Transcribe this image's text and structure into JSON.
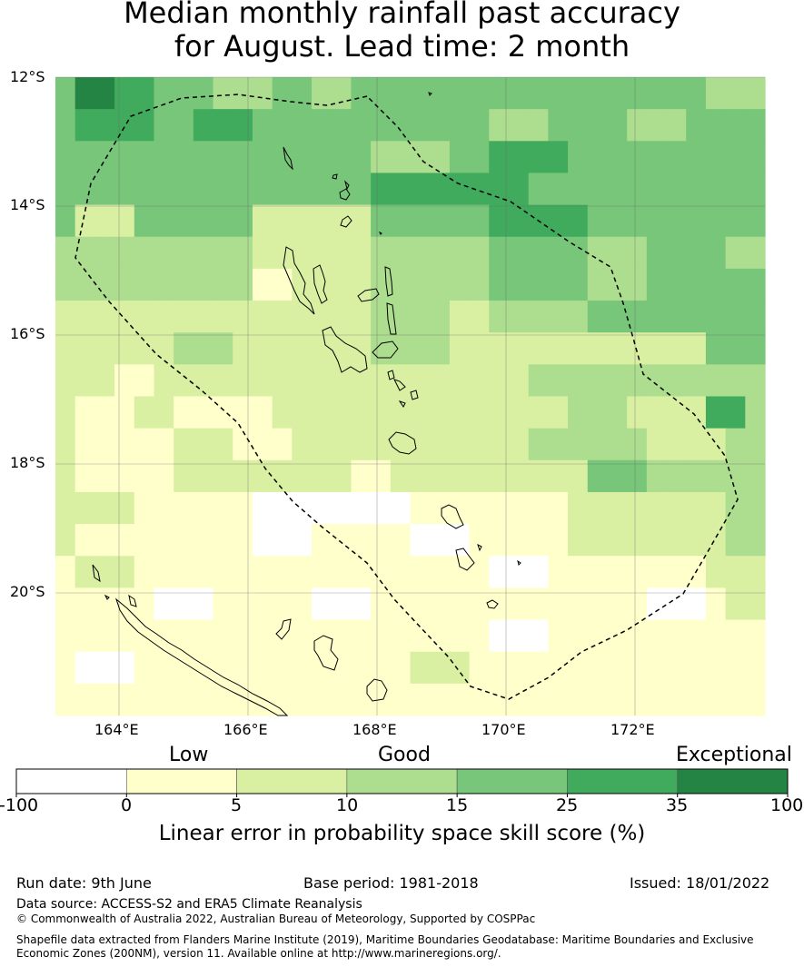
{
  "title_line1": "Median monthly rainfall past accuracy",
  "title_line2": "for August. Lead time: 2 month",
  "map": {
    "lat_labels": [
      "12°S",
      "14°S",
      "16°S",
      "18°S",
      "20°S"
    ],
    "lon_labels": [
      "164°E",
      "166°E",
      "168°E",
      "170°E",
      "172°E"
    ],
    "colors": [
      "#ffffff",
      "#ffffcc",
      "#d9f0a3",
      "#addd8e",
      "#78c679",
      "#41ab5d",
      "#238443"
    ],
    "grid_rows": [
      [
        4,
        6,
        6,
        5,
        5,
        4,
        4,
        4,
        3,
        3,
        3,
        4,
        4,
        3,
        3,
        4,
        4,
        4,
        4,
        4,
        4,
        4,
        4,
        4,
        4,
        4,
        4,
        4,
        4,
        4,
        4,
        4,
        4,
        3,
        3,
        3
      ],
      [
        4,
        5,
        5,
        5,
        5,
        4,
        4,
        5,
        5,
        5,
        4,
        4,
        4,
        4,
        4,
        4,
        4,
        4,
        4,
        4,
        4,
        4,
        3,
        3,
        3,
        4,
        4,
        4,
        4,
        3,
        3,
        3,
        4,
        4,
        4,
        4
      ],
      [
        4,
        4,
        4,
        4,
        4,
        4,
        4,
        4,
        4,
        4,
        4,
        4,
        4,
        4,
        4,
        4,
        3,
        3,
        3,
        3,
        4,
        4,
        5,
        5,
        5,
        5,
        4,
        4,
        4,
        4,
        4,
        4,
        4,
        4,
        4,
        4
      ],
      [
        4,
        4,
        4,
        4,
        4,
        4,
        4,
        4,
        4,
        4,
        4,
        4,
        4,
        4,
        4,
        4,
        5,
        5,
        5,
        5,
        5,
        5,
        5,
        5,
        4,
        4,
        4,
        4,
        4,
        4,
        4,
        4,
        4,
        4,
        4,
        4
      ],
      [
        4,
        2,
        2,
        2,
        4,
        4,
        4,
        4,
        4,
        4,
        2,
        2,
        2,
        2,
        2,
        2,
        4,
        4,
        4,
        4,
        4,
        4,
        5,
        5,
        5,
        5,
        5,
        4,
        4,
        4,
        4,
        4,
        4,
        4,
        4,
        4
      ],
      [
        3,
        3,
        3,
        3,
        3,
        3,
        3,
        3,
        3,
        3,
        2,
        2,
        2,
        2,
        2,
        2,
        3,
        3,
        3,
        3,
        3,
        3,
        4,
        4,
        4,
        4,
        4,
        3,
        3,
        3,
        4,
        4,
        4,
        4,
        3,
        3
      ],
      [
        3,
        3,
        3,
        3,
        3,
        3,
        3,
        3,
        3,
        3,
        1,
        1,
        2,
        2,
        2,
        2,
        3,
        3,
        3,
        3,
        3,
        3,
        4,
        4,
        4,
        4,
        4,
        3,
        3,
        3,
        4,
        4,
        4,
        4,
        4,
        4
      ],
      [
        2,
        2,
        2,
        2,
        2,
        2,
        2,
        2,
        2,
        2,
        2,
        2,
        2,
        2,
        2,
        2,
        3,
        3,
        3,
        3,
        2,
        2,
        3,
        3,
        3,
        3,
        3,
        4,
        4,
        4,
        4,
        4,
        4,
        4,
        4,
        4
      ],
      [
        2,
        2,
        2,
        2,
        2,
        2,
        3,
        3,
        3,
        2,
        2,
        2,
        2,
        2,
        2,
        2,
        3,
        3,
        3,
        3,
        2,
        2,
        2,
        2,
        2,
        2,
        2,
        2,
        2,
        2,
        2,
        2,
        2,
        4,
        4,
        4
      ],
      [
        2,
        2,
        2,
        1,
        1,
        2,
        2,
        2,
        2,
        2,
        2,
        2,
        2,
        2,
        2,
        2,
        2,
        2,
        2,
        2,
        2,
        2,
        2,
        2,
        3,
        3,
        3,
        3,
        3,
        3,
        3,
        3,
        3,
        3,
        3,
        3
      ],
      [
        2,
        1,
        1,
        1,
        2,
        2,
        1,
        1,
        1,
        1,
        1,
        2,
        2,
        2,
        2,
        2,
        2,
        2,
        2,
        2,
        2,
        2,
        2,
        2,
        2,
        2,
        3,
        3,
        3,
        2,
        2,
        2,
        2,
        5,
        5,
        3
      ],
      [
        2,
        1,
        1,
        1,
        1,
        1,
        2,
        2,
        2,
        1,
        1,
        1,
        2,
        2,
        2,
        2,
        2,
        2,
        2,
        2,
        2,
        2,
        2,
        2,
        3,
        3,
        3,
        3,
        3,
        3,
        2,
        2,
        2,
        2,
        3,
        3
      ],
      [
        2,
        1,
        1,
        1,
        1,
        1,
        2,
        2,
        2,
        2,
        2,
        2,
        2,
        2,
        2,
        1,
        1,
        2,
        2,
        2,
        2,
        2,
        2,
        2,
        2,
        2,
        2,
        4,
        4,
        4,
        3,
        3,
        3,
        3,
        3,
        3
      ],
      [
        2,
        2,
        2,
        2,
        1,
        1,
        1,
        1,
        1,
        1,
        0,
        0,
        0,
        0,
        0,
        0,
        0,
        0,
        1,
        1,
        1,
        1,
        1,
        1,
        1,
        1,
        2,
        2,
        2,
        2,
        2,
        2,
        2,
        2,
        3,
        3
      ],
      [
        2,
        1,
        1,
        1,
        1,
        1,
        1,
        1,
        1,
        1,
        0,
        0,
        0,
        1,
        1,
        1,
        1,
        1,
        0,
        0,
        0,
        1,
        1,
        1,
        1,
        1,
        2,
        2,
        2,
        2,
        2,
        2,
        2,
        2,
        3,
        3
      ],
      [
        1,
        2,
        2,
        2,
        1,
        1,
        1,
        1,
        1,
        1,
        1,
        1,
        1,
        1,
        1,
        1,
        1,
        1,
        1,
        1,
        1,
        1,
        0,
        0,
        0,
        1,
        1,
        1,
        1,
        1,
        1,
        1,
        1,
        2,
        2,
        2
      ],
      [
        1,
        1,
        1,
        1,
        1,
        0,
        0,
        0,
        1,
        1,
        1,
        1,
        1,
        0,
        0,
        0,
        1,
        1,
        1,
        1,
        1,
        1,
        1,
        1,
        1,
        1,
        1,
        1,
        1,
        1,
        0,
        0,
        0,
        1,
        2,
        2
      ],
      [
        1,
        1,
        1,
        1,
        1,
        1,
        1,
        1,
        1,
        1,
        1,
        1,
        1,
        1,
        1,
        1,
        1,
        1,
        1,
        1,
        1,
        1,
        0,
        0,
        0,
        1,
        1,
        1,
        1,
        1,
        1,
        1,
        1,
        1,
        1,
        1
      ],
      [
        1,
        0,
        0,
        0,
        1,
        1,
        1,
        1,
        1,
        1,
        1,
        1,
        1,
        1,
        1,
        1,
        1,
        1,
        2,
        2,
        2,
        1,
        1,
        1,
        1,
        1,
        1,
        1,
        1,
        1,
        1,
        1,
        1,
        1,
        1,
        1
      ],
      [
        1,
        1,
        1,
        1,
        1,
        1,
        1,
        1,
        1,
        1,
        1,
        1,
        1,
        1,
        1,
        1,
        1,
        1,
        1,
        1,
        1,
        1,
        1,
        1,
        1,
        1,
        1,
        1,
        1,
        1,
        1,
        1,
        1,
        1,
        1,
        1
      ]
    ]
  },
  "colorbar": {
    "words": [
      "Low",
      "Good",
      "Exceptional"
    ],
    "ticks": [
      "-100",
      "0",
      "5",
      "10",
      "15",
      "25",
      "35",
      "100"
    ],
    "label": "Linear error in probability space skill score (%)"
  },
  "footer": {
    "run_date": "Run date: 9th June",
    "base_period": "Base period: 1981-2018",
    "issued": "Issued: 18/01/2022",
    "data_source": "Data source: ACCESS-S2 and ERA5 Climate Reanalysis",
    "copyright": "© Commonwealth of Australia 2022, Australian Bureau of Meteorology, Supported by COSPPac",
    "shapefile_line1": "Shapefile data extracted from Flanders Marine Institute (2019), Maritime Boundaries Geodatabase: Maritime Boundaries and Exclusive",
    "shapefile_line2": "Economic Zones (200NM), version 11. Available online at http://www.marineregions.org/."
  }
}
